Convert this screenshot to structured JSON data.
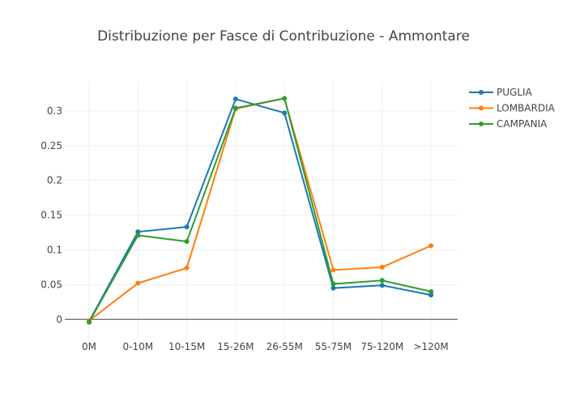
{
  "chart_data": {
    "type": "line",
    "title": "Distribuzione per Fasce di Contribuzione - Ammontare",
    "xlabel": "",
    "ylabel": "",
    "categories": [
      "0M",
      "0-10M",
      "10-15M",
      "15-26M",
      "26-55M",
      "55-75M",
      "75-120M",
      ">120M"
    ],
    "y_ticks": [
      0,
      0.05,
      0.1,
      0.15,
      0.2,
      0.25,
      0.3
    ],
    "y_tick_labels": [
      "0",
      "0.05",
      "0.1",
      "0.15",
      "0.2",
      "0.25",
      "0.3"
    ],
    "ylim": [
      -0.03,
      0.343
    ],
    "grid": true,
    "legend_position": "top-right",
    "series": [
      {
        "name": "PUGLIA",
        "color": "#1f77b4",
        "values": [
          -0.003,
          0.126,
          0.133,
          0.317,
          0.297,
          0.045,
          0.049,
          0.035
        ]
      },
      {
        "name": "LOMBARDIA",
        "color": "#ff7f0e",
        "values": [
          -0.002,
          0.052,
          0.074,
          0.303,
          0.318,
          0.071,
          0.075,
          0.106
        ]
      },
      {
        "name": "CAMPANIA",
        "color": "#2ca02c",
        "values": [
          -0.004,
          0.121,
          0.112,
          0.304,
          0.318,
          0.051,
          0.056,
          0.04
        ]
      }
    ]
  }
}
